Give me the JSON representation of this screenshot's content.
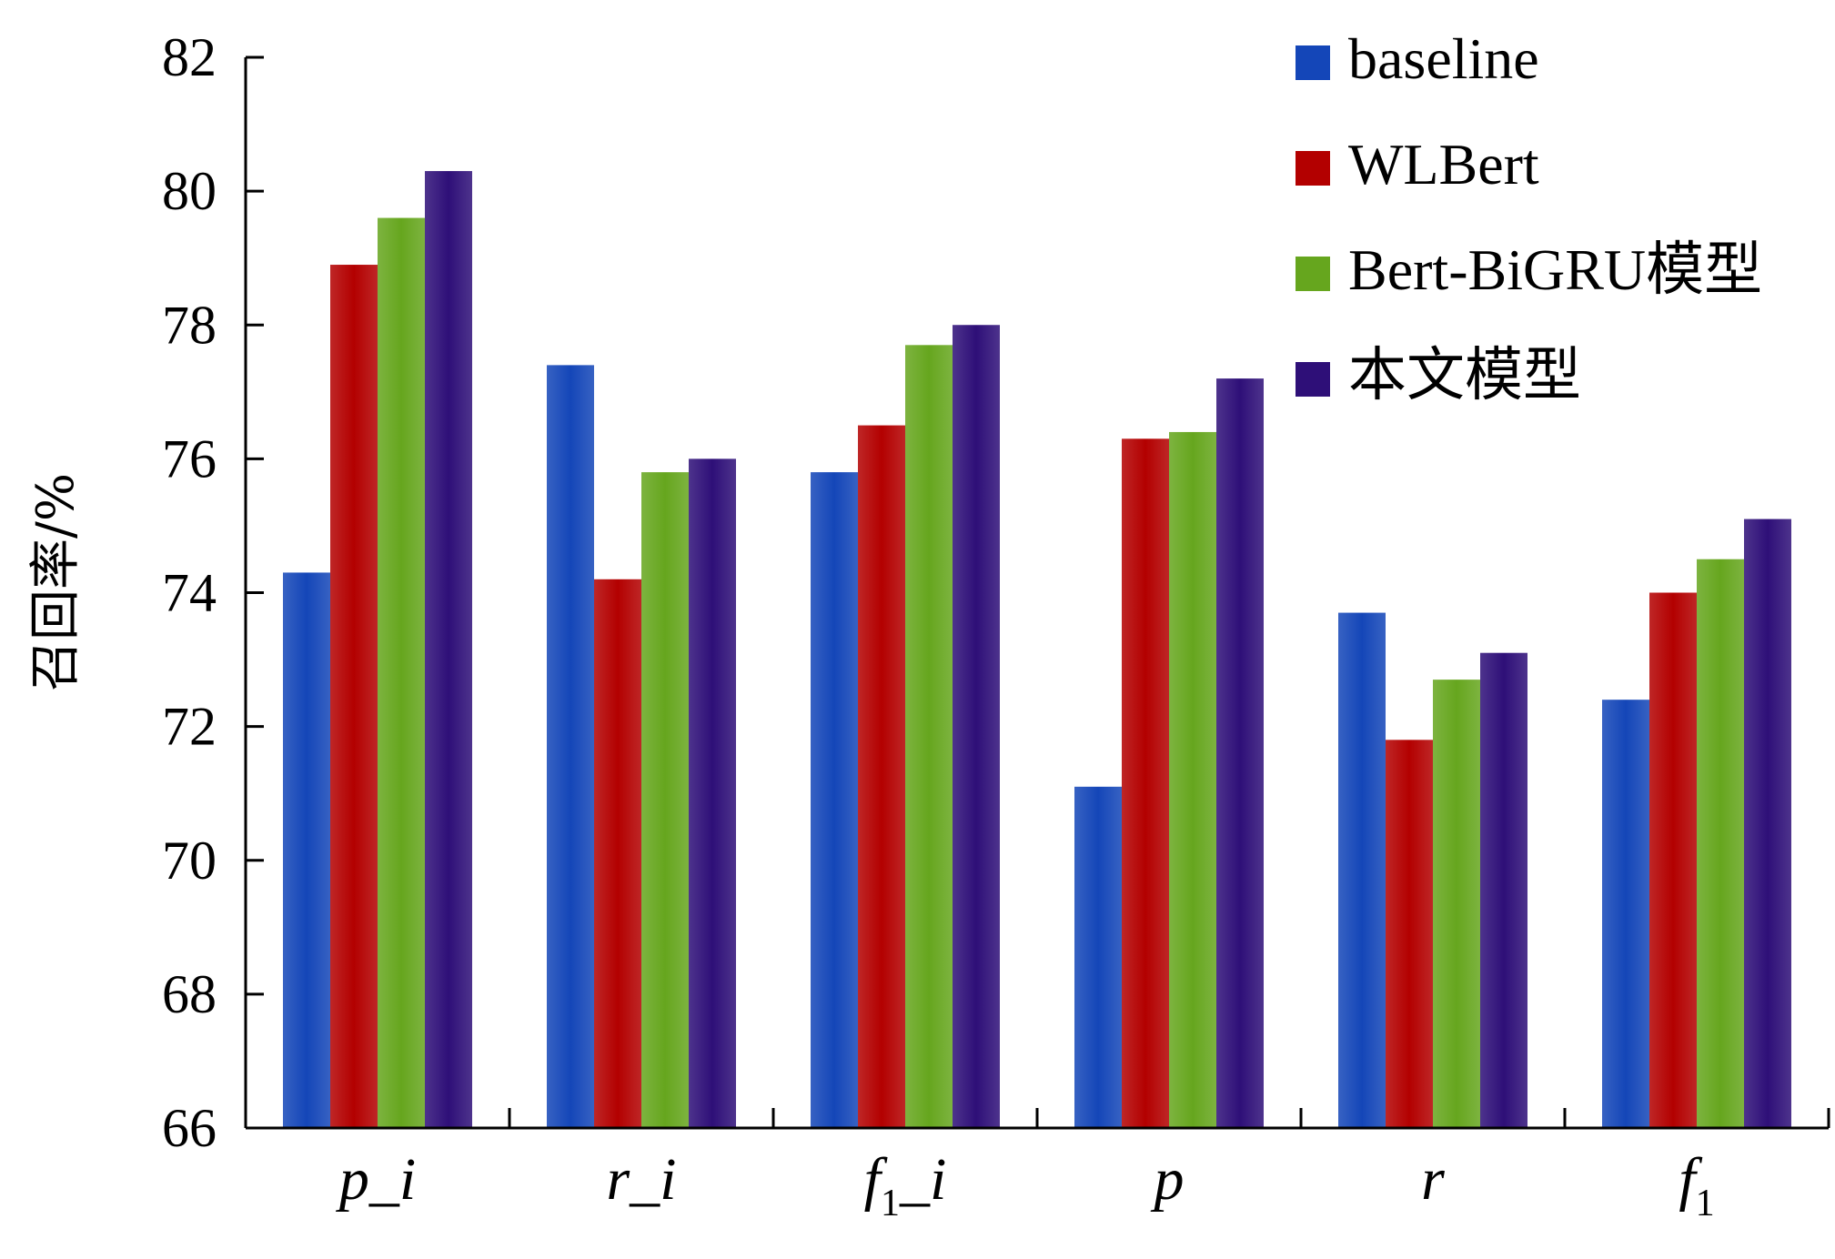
{
  "chart_data": {
    "type": "bar",
    "ylabel": "召回率/%",
    "xlabel": "",
    "ylim": [
      66,
      82
    ],
    "yticks": [
      "66",
      "68",
      "70",
      "72",
      "74",
      "76",
      "78",
      "80",
      "82"
    ],
    "categories": [
      {
        "main": "p_i",
        "sub": ""
      },
      {
        "main": "r_i",
        "sub": ""
      },
      {
        "main": "f",
        "sub": "1",
        "tail": "_i"
      },
      {
        "main": "p",
        "sub": ""
      },
      {
        "main": "r",
        "sub": ""
      },
      {
        "main": "f",
        "sub": "1"
      }
    ],
    "series": [
      {
        "name": "baseline",
        "color": "#1446b8",
        "values": [
          74.3,
          77.4,
          75.8,
          71.1,
          73.7,
          72.4
        ]
      },
      {
        "name": "WLBert",
        "color": "#b30000",
        "values": [
          78.9,
          74.2,
          76.5,
          76.3,
          71.8,
          74.0
        ]
      },
      {
        "name": "Bert-BiGRU模型",
        "color": "#66a61e",
        "values": [
          79.6,
          75.8,
          77.7,
          76.4,
          72.7,
          74.5
        ]
      },
      {
        "name": "本文模型",
        "color": "#2e0f78",
        "values": [
          80.3,
          76.0,
          78.0,
          77.2,
          73.1,
          75.1
        ]
      }
    ],
    "legend_position": "top-right",
    "grid": false
  }
}
